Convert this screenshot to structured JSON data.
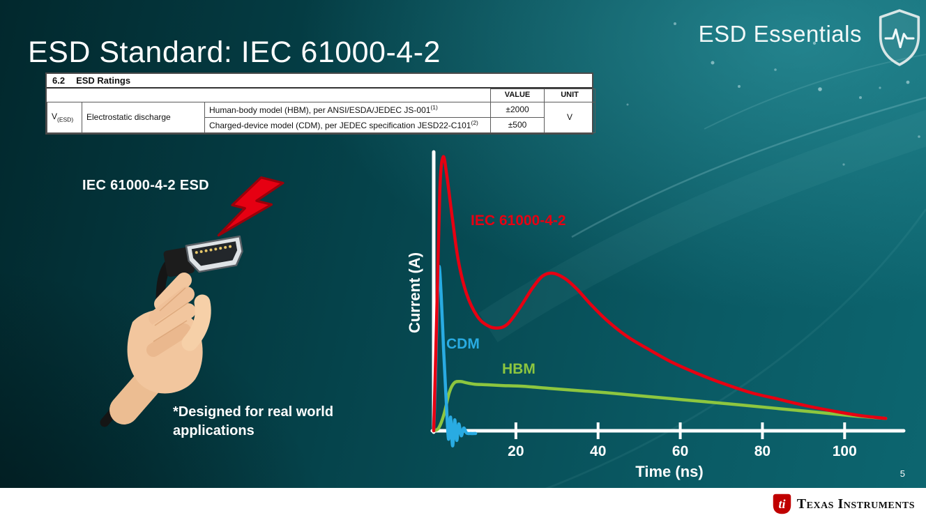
{
  "slide": {
    "title": "ESD Standard: IEC 61000-4-2",
    "series_label": "ESD Essentials",
    "page_number": "5",
    "footer_brand": "Texas Instruments"
  },
  "colors": {
    "background_teal": "#0a5f68",
    "iec_red": "#e60012",
    "cdm_blue": "#29abe2",
    "hbm_green": "#8dc63f",
    "ti_red": "#c00000"
  },
  "icons": {
    "brand_logo": "shield-heartbeat-icon",
    "strike": "lightning-bolt-icon",
    "footer_logo": "ti-bug-icon"
  },
  "ratings_table": {
    "section_number": "6.2",
    "section_title": "ESD Ratings",
    "headers": {
      "value": "VALUE",
      "unit": "UNIT"
    },
    "param_symbol": "V",
    "param_symbol_sub": "(ESD)",
    "param_name": "Electrostatic discharge",
    "rows": [
      {
        "desc": "Human-body model (HBM), per ANSI/ESDA/JEDEC JS-001",
        "sup": "(1)",
        "value": "±2000"
      },
      {
        "desc": "Charged-device model (CDM), per JEDEC specification JESD22-C101",
        "sup": "(2)",
        "value": "±500"
      }
    ],
    "unit": "V"
  },
  "left_panel": {
    "caption": "IEC 61000-4-2 ESD",
    "note": "*Designed for real world applications"
  },
  "chart_data": {
    "type": "line",
    "title": "",
    "xlabel": "Time (ns)",
    "ylabel": "Current (A)",
    "x_ticks": [
      20,
      40,
      60,
      80,
      100
    ],
    "xlim": [
      0,
      112
    ],
    "ylim": [
      -0.08,
      1.05
    ],
    "grid": false,
    "legend_position": "inline-labels",
    "series": [
      {
        "name": "IEC 61000-4-2",
        "color": "#e60012",
        "x": [
          0,
          0.7,
          1.5,
          2.3,
          3.2,
          4.5,
          6,
          8,
          10.5,
          13,
          15.5,
          18,
          21,
          24,
          26.5,
          29,
          32,
          35,
          38,
          42,
          47,
          52,
          58,
          64,
          70,
          77,
          84,
          91,
          98,
          104,
          110
        ],
        "y": [
          0,
          0.4,
          0.88,
          1.0,
          0.93,
          0.78,
          0.62,
          0.5,
          0.42,
          0.385,
          0.375,
          0.39,
          0.45,
          0.52,
          0.565,
          0.575,
          0.555,
          0.515,
          0.465,
          0.405,
          0.345,
          0.3,
          0.25,
          0.21,
          0.175,
          0.14,
          0.115,
          0.09,
          0.07,
          0.055,
          0.045
        ]
      },
      {
        "name": "CDM",
        "color": "#29abe2",
        "x": [
          0,
          0.4,
          0.9,
          1.3,
          1.8,
          2.4,
          3.0,
          3.6,
          4.1,
          4.6,
          5.1,
          5.6,
          6.1,
          6.7,
          7.3,
          8.0,
          9.0,
          10.2
        ],
        "y": [
          0,
          0.18,
          0.48,
          0.6,
          0.5,
          0.3,
          0.12,
          -0.03,
          0.05,
          -0.055,
          0.04,
          -0.035,
          0.025,
          -0.018,
          0.01,
          -0.008,
          -0.01,
          -0.01
        ]
      },
      {
        "name": "HBM",
        "color": "#8dc63f",
        "x": [
          0,
          1.2,
          2.5,
          3.8,
          5,
          6.5,
          8,
          10,
          13,
          17,
          22,
          28,
          35,
          42,
          50,
          58,
          66,
          75,
          84,
          93,
          101,
          106,
          110
        ],
        "y": [
          0,
          0.01,
          0.06,
          0.14,
          0.175,
          0.18,
          0.175,
          0.17,
          0.168,
          0.165,
          0.162,
          0.155,
          0.147,
          0.139,
          0.128,
          0.117,
          0.106,
          0.094,
          0.081,
          0.068,
          0.056,
          0.05,
          0.045
        ]
      }
    ]
  }
}
